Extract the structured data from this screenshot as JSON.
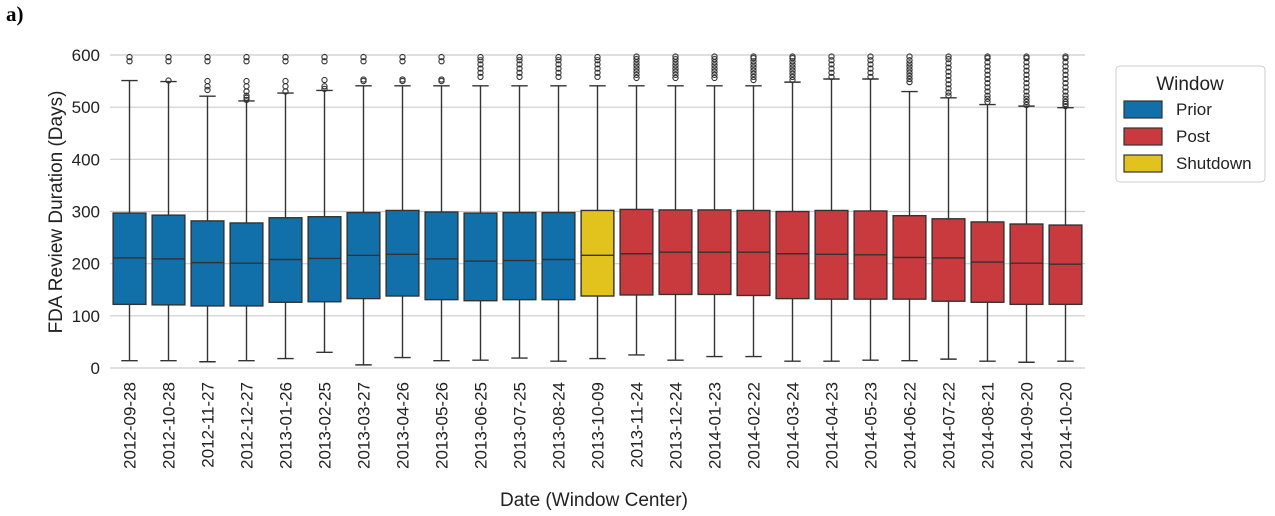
{
  "panel_label": "a)",
  "chart_data": {
    "type": "box",
    "title": "",
    "xlabel": "Date (Window Center)",
    "ylabel": "FDA Review Duration (Days)",
    "ylim": [
      0,
      600
    ],
    "yticks": [
      0,
      100,
      200,
      300,
      400,
      500,
      600
    ],
    "grid": "horizontal",
    "legend": {
      "title": "Window",
      "placement": "outside-right",
      "entries": [
        {
          "name": "Prior",
          "color": "#1170aa"
        },
        {
          "name": "Post",
          "color": "#c93a3e"
        },
        {
          "name": "Shutdown",
          "color": "#e2c21d"
        }
      ]
    },
    "categories": [
      "2012-09-28",
      "2012-10-28",
      "2012-11-27",
      "2012-12-27",
      "2013-01-26",
      "2013-02-25",
      "2013-03-27",
      "2013-04-26",
      "2013-05-26",
      "2013-06-25",
      "2013-07-25",
      "2013-08-24",
      "2013-10-09",
      "2013-11-24",
      "2013-12-24",
      "2014-01-23",
      "2014-02-22",
      "2014-03-24",
      "2014-04-23",
      "2014-05-23",
      "2014-06-22",
      "2014-07-22",
      "2014-08-21",
      "2014-09-20",
      "2014-10-20"
    ],
    "boxes": [
      {
        "window": "Prior",
        "min": 14,
        "q1": 122,
        "median": 211,
        "q3": 297,
        "max": 551,
        "outliers": [
          588,
          596
        ]
      },
      {
        "window": "Prior",
        "min": 14,
        "q1": 121,
        "median": 209,
        "q3": 293,
        "max": 549,
        "outliers": [
          551,
          588,
          596
        ]
      },
      {
        "window": "Prior",
        "min": 12,
        "q1": 119,
        "median": 202,
        "q3": 282,
        "max": 521,
        "outliers": [
          533,
          540,
          550,
          588,
          596
        ]
      },
      {
        "window": "Prior",
        "min": 14,
        "q1": 119,
        "median": 201,
        "q3": 278,
        "max": 512,
        "outliers": [
          514,
          518,
          522,
          530,
          540,
          550,
          588,
          596
        ]
      },
      {
        "window": "Prior",
        "min": 18,
        "q1": 126,
        "median": 208,
        "q3": 288,
        "max": 527,
        "outliers": [
          530,
          540,
          550,
          588,
          596
        ]
      },
      {
        "window": "Prior",
        "min": 30,
        "q1": 127,
        "median": 210,
        "q3": 290,
        "max": 532,
        "outliers": [
          535,
          540,
          552,
          588,
          596
        ]
      },
      {
        "window": "Prior",
        "min": 6,
        "q1": 133,
        "median": 216,
        "q3": 298,
        "max": 541,
        "outliers": [
          550,
          553,
          588,
          596
        ]
      },
      {
        "window": "Prior",
        "min": 20,
        "q1": 138,
        "median": 218,
        "q3": 302,
        "max": 541,
        "outliers": [
          550,
          553,
          588,
          596
        ]
      },
      {
        "window": "Prior",
        "min": 14,
        "q1": 131,
        "median": 209,
        "q3": 299,
        "max": 541,
        "outliers": [
          550,
          553,
          588,
          596
        ]
      },
      {
        "window": "Prior",
        "min": 15,
        "q1": 129,
        "median": 205,
        "q3": 297,
        "max": 541,
        "outliers": [
          558,
          566,
          574,
          582,
          590,
          596
        ]
      },
      {
        "window": "Prior",
        "min": 19,
        "q1": 131,
        "median": 206,
        "q3": 298,
        "max": 541,
        "outliers": [
          558,
          566,
          574,
          582,
          590,
          596
        ]
      },
      {
        "window": "Prior",
        "min": 13,
        "q1": 131,
        "median": 208,
        "q3": 298,
        "max": 541,
        "outliers": [
          558,
          566,
          574,
          582,
          590,
          596
        ]
      },
      {
        "window": "Shutdown",
        "min": 18,
        "q1": 138,
        "median": 216,
        "q3": 302,
        "max": 541,
        "outliers": [
          558,
          566,
          574,
          582,
          590,
          596
        ]
      },
      {
        "window": "Post",
        "min": 25,
        "q1": 140,
        "median": 219,
        "q3": 304,
        "max": 541,
        "outliers": [
          556,
          562,
          568,
          574,
          580,
          586,
          592,
          597
        ]
      },
      {
        "window": "Post",
        "min": 15,
        "q1": 141,
        "median": 222,
        "q3": 303,
        "max": 541,
        "outliers": [
          556,
          562,
          568,
          574,
          580,
          586,
          592,
          597
        ]
      },
      {
        "window": "Post",
        "min": 22,
        "q1": 141,
        "median": 222,
        "q3": 303,
        "max": 541,
        "outliers": [
          556,
          562,
          568,
          574,
          580,
          586,
          592,
          597
        ]
      },
      {
        "window": "Post",
        "min": 22,
        "q1": 139,
        "median": 222,
        "q3": 302,
        "max": 541,
        "outliers": [
          552,
          558,
          564,
          570,
          576,
          582,
          588,
          594,
          597
        ]
      },
      {
        "window": "Post",
        "min": 13,
        "q1": 133,
        "median": 219,
        "q3": 300,
        "max": 548,
        "outliers": [
          552,
          558,
          564,
          570,
          576,
          582,
          588,
          594,
          597
        ]
      },
      {
        "window": "Post",
        "min": 13,
        "q1": 132,
        "median": 218,
        "q3": 302,
        "max": 554,
        "outliers": [
          558,
          566,
          574,
          582,
          590,
          597
        ]
      },
      {
        "window": "Post",
        "min": 15,
        "q1": 132,
        "median": 217,
        "q3": 301,
        "max": 554,
        "outliers": [
          558,
          566,
          574,
          582,
          590,
          597
        ]
      },
      {
        "window": "Post",
        "min": 14,
        "q1": 132,
        "median": 212,
        "q3": 292,
        "max": 530,
        "outliers": [
          548,
          554,
          560,
          566,
          572,
          578,
          584,
          590,
          597
        ]
      },
      {
        "window": "Post",
        "min": 17,
        "q1": 128,
        "median": 211,
        "q3": 286,
        "max": 518,
        "outliers": [
          522,
          528,
          536,
          544,
          552,
          560,
          568,
          576,
          584,
          592,
          597
        ]
      },
      {
        "window": "Post",
        "min": 13,
        "q1": 126,
        "median": 203,
        "q3": 280,
        "max": 505,
        "outliers": [
          510,
          516,
          522,
          530,
          538,
          546,
          554,
          562,
          570,
          578,
          586,
          594,
          597
        ]
      },
      {
        "window": "Post",
        "min": 11,
        "q1": 122,
        "median": 201,
        "q3": 276,
        "max": 502,
        "outliers": [
          504,
          510,
          516,
          522,
          530,
          538,
          546,
          554,
          562,
          570,
          578,
          586,
          594,
          597
        ]
      },
      {
        "window": "Post",
        "min": 13,
        "q1": 122,
        "median": 199,
        "q3": 274,
        "max": 499,
        "outliers": [
          502,
          506,
          510,
          516,
          522,
          530,
          538,
          546,
          554,
          562,
          570,
          578,
          586,
          594,
          597
        ]
      }
    ]
  }
}
